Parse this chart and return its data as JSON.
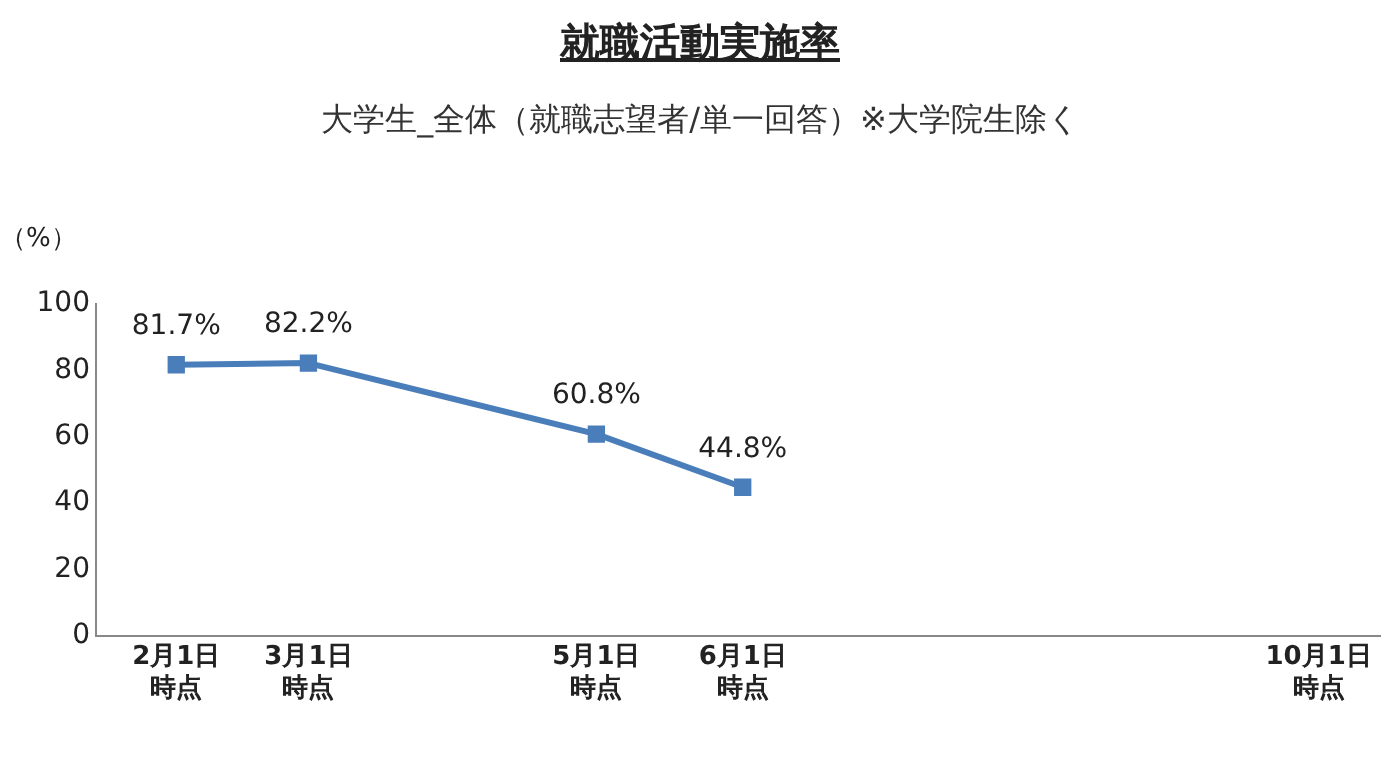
{
  "chart_data": {
    "type": "line",
    "title": "就職活動実施率",
    "subtitle": "大学生_全体（就職志望者/単一回答）※大学院生除く",
    "ylabel": "（%）",
    "x": [
      "--02-01",
      "--03-01",
      "--05-01",
      "--06-01"
    ],
    "series": [
      {
        "color": "#4a7ebb",
        "values": [
          81.7,
          82.2,
          60.8,
          44.8
        ],
        "value_labels": [
          "81.7%",
          "82.2%",
          "60.8%",
          "44.8%"
        ]
      }
    ],
    "xlim": [
      "--01-15",
      "--10-14"
    ],
    "xticks": [
      {
        "value": "--02-01",
        "label": "2月1日時点"
      },
      {
        "value": "--03-01",
        "label": "3月1日時点"
      },
      {
        "value": "--05-01",
        "label": "5月1日時点"
      },
      {
        "value": "--06-01",
        "label": "6月1日時点"
      },
      {
        "value": "--10-01",
        "label": "10月1日時点"
      }
    ],
    "ylim": [
      0,
      100
    ],
    "yticks": [
      0,
      20,
      40,
      60,
      80,
      100
    ],
    "grid": false,
    "legend": false,
    "marker": "square",
    "line_style": "solid"
  }
}
